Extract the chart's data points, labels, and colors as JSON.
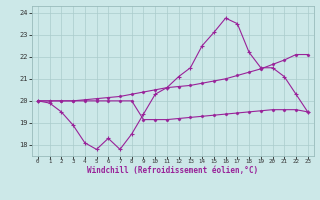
{
  "xlabel": "Windchill (Refroidissement éolien,°C)",
  "x_values": [
    0,
    1,
    2,
    3,
    4,
    5,
    6,
    7,
    8,
    9,
    10,
    11,
    12,
    13,
    14,
    15,
    16,
    17,
    18,
    19,
    20,
    21,
    22,
    23
  ],
  "line1_y": [
    20.0,
    19.9,
    19.5,
    18.9,
    18.1,
    17.8,
    18.3,
    17.8,
    18.5,
    19.4,
    20.3,
    20.6,
    21.1,
    21.5,
    22.5,
    23.1,
    23.75,
    23.5,
    22.2,
    21.5,
    21.5,
    21.1,
    20.3,
    19.5
  ],
  "line2_y": [
    20.0,
    20.0,
    20.0,
    20.0,
    20.05,
    20.1,
    20.15,
    20.2,
    20.3,
    20.4,
    20.5,
    20.6,
    20.65,
    20.7,
    20.8,
    20.9,
    21.0,
    21.15,
    21.3,
    21.45,
    21.65,
    21.85,
    22.1,
    22.1
  ],
  "line3_y": [
    20.0,
    20.0,
    20.0,
    20.0,
    20.0,
    20.0,
    20.0,
    20.0,
    20.0,
    19.15,
    19.15,
    19.15,
    19.2,
    19.25,
    19.3,
    19.35,
    19.4,
    19.45,
    19.5,
    19.55,
    19.6,
    19.6,
    19.6,
    19.5
  ],
  "line_color": "#992299",
  "bg_color": "#cce8e8",
  "grid_color": "#aacccc",
  "ylim": [
    17.5,
    24.3
  ],
  "yticks": [
    18,
    19,
    20,
    21,
    22,
    23,
    24
  ],
  "xlim": [
    -0.5,
    23.5
  ]
}
